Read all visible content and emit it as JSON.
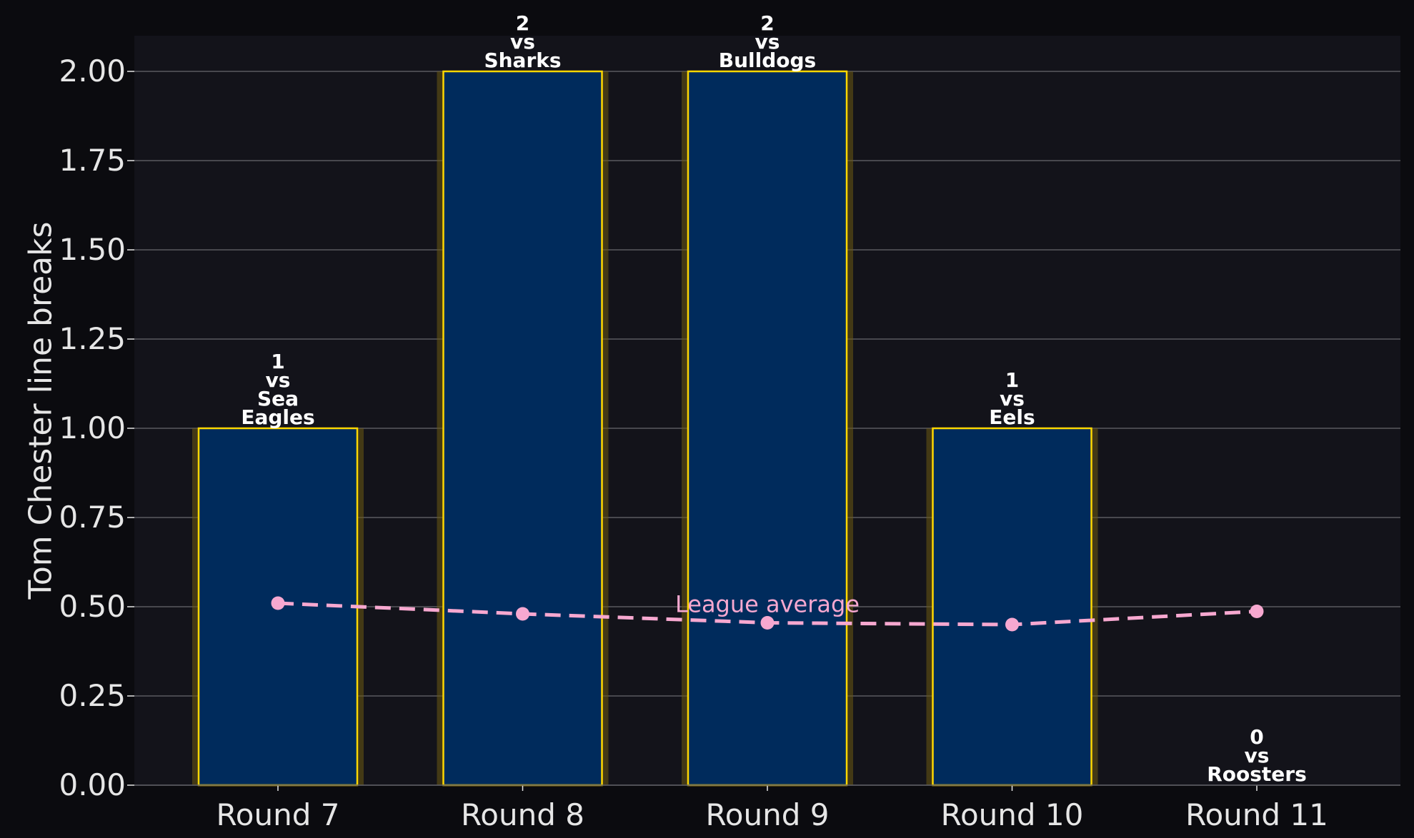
{
  "chart_data": {
    "type": "bar",
    "title": "",
    "xlabel": "",
    "ylabel": "Tom Chester line breaks",
    "ylim": [
      0,
      2.1
    ],
    "yticks": [
      "0.00",
      "0.25",
      "0.50",
      "0.75",
      "1.00",
      "1.25",
      "1.50",
      "1.75",
      "2.00"
    ],
    "grid": true,
    "categories": [
      "Round 7",
      "Round 8",
      "Round 9",
      "Round 10",
      "Round 11"
    ],
    "values": [
      1,
      2,
      2,
      1,
      0
    ],
    "opponents": [
      "Sea Eagles",
      "Sharks",
      "Bulldogs",
      "Eels",
      "Roosters"
    ],
    "bar_labels": [
      [
        "1",
        "vs",
        "Sea",
        "Eagles"
      ],
      [
        "2",
        "vs",
        "Sharks"
      ],
      [
        "2",
        "vs",
        "Bulldogs"
      ],
      [
        "1",
        "vs",
        "Eels"
      ],
      [
        "0",
        "vs",
        "Roosters"
      ]
    ],
    "average_line": {
      "label": "League average",
      "values": [
        0.51,
        0.48,
        0.455,
        0.45,
        0.487
      ]
    },
    "colors": {
      "background": "#0b0b0f",
      "plot_background": "#13131a",
      "bar_fill": "#002b5c",
      "bar_edge": "#ffd700",
      "bar_glow": "#6b5a12",
      "average_line": "#f7a8d0",
      "grid": "#5a5a60",
      "text": "#e6e6e6",
      "label_text": "#ffffff"
    }
  }
}
